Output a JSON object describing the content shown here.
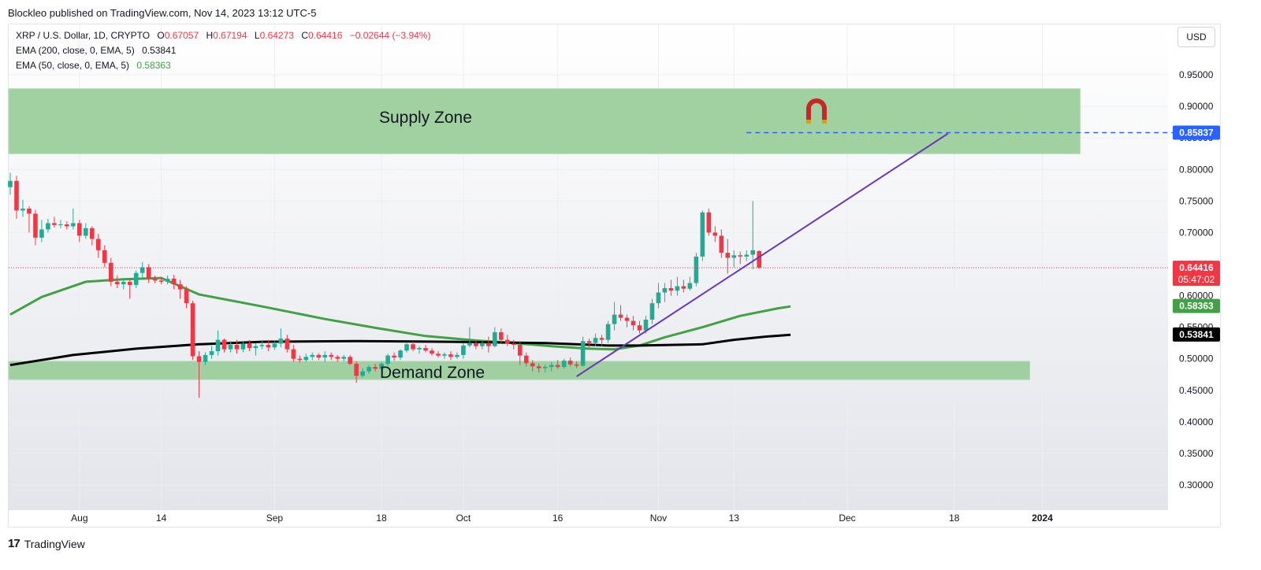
{
  "header": {
    "published": "Blockleo published on TradingView.com, Nov 14, 2023 13:12 UTC-5"
  },
  "legend": {
    "symbol": "XRP / U.S. Dollar, 1D, CRYPTO",
    "o_label": "O",
    "o": "0.67057",
    "h_label": "H",
    "h": "0.67194",
    "l_label": "L",
    "l": "0.64273",
    "c_label": "C",
    "c": "0.64416",
    "change": "−0.02644 (−3.94%)",
    "ema200": "EMA (200, close, 0, EMA, 5)",
    "ema200_val": "0.53841",
    "ema50": "EMA (50, close, 0, EMA, 5)",
    "ema50_val": "0.58363"
  },
  "currency_button": "USD",
  "footer": {
    "brand": "TradingView",
    "logo": "17"
  },
  "colors": {
    "up": "#22ab94",
    "down": "#f23645",
    "ema50": "#43a047",
    "ema200": "#000000",
    "trendline": "#673ab7",
    "zone": "#9ccf9c",
    "dash": "#2962ff"
  },
  "chart_data": {
    "type": "candlestick",
    "symbol": "XRP / U.S. Dollar",
    "ylim": [
      0.26,
      1.03
    ],
    "y_ticks": [
      "0.95000",
      "0.90000",
      "0.85000",
      "0.80000",
      "0.75000",
      "0.70000",
      "0.65000",
      "0.60000",
      "0.55000",
      "0.50000",
      "0.45000",
      "0.40000",
      "0.35000",
      "0.30000"
    ],
    "x_ticks": [
      "Aug",
      "14",
      "Sep",
      "18",
      "Oct",
      "16",
      "Nov",
      "13",
      "Dec",
      "18",
      "2024"
    ],
    "price_labels": [
      {
        "text": "0.85837",
        "value": 0.85837,
        "color": "#2962ff"
      },
      {
        "text": "0.64416",
        "sub": "05:47:02",
        "value": 0.64416,
        "color": "#f23645"
      },
      {
        "text": "0.58363",
        "value": 0.58363,
        "color": "#43a047"
      },
      {
        "text": "0.53841",
        "value": 0.53841,
        "color": "#000000"
      }
    ],
    "zones": [
      {
        "label": "Supply Zone",
        "low": 0.825,
        "high": 0.928,
        "start": "2023-07-21",
        "end": "2024-01-07"
      },
      {
        "label": "Demand Zone",
        "low": 0.467,
        "high": 0.496,
        "start": "2023-07-21",
        "end": "2023-12-30"
      }
    ],
    "target_line": {
      "value": 0.85837,
      "start": "2023-11-15"
    },
    "trendline": {
      "start": {
        "date": "2023-10-19",
        "value": 0.472
      },
      "end": {
        "date": "2023-12-17",
        "value": 0.857
      }
    },
    "last_price": 0.64416,
    "ema200": [
      [
        0,
        0.49
      ],
      [
        10,
        0.506
      ],
      [
        20,
        0.516
      ],
      [
        30,
        0.523
      ],
      [
        40,
        0.527
      ],
      [
        55,
        0.528
      ],
      [
        70,
        0.527
      ],
      [
        85,
        0.525
      ],
      [
        95,
        0.521
      ],
      [
        100,
        0.521
      ],
      [
        110,
        0.523
      ],
      [
        115,
        0.53
      ],
      [
        120,
        0.535
      ],
      [
        124,
        0.538
      ]
    ],
    "ema50": [
      [
        0,
        0.57
      ],
      [
        5,
        0.598
      ],
      [
        12,
        0.622
      ],
      [
        18,
        0.626
      ],
      [
        24,
        0.628
      ],
      [
        30,
        0.602
      ],
      [
        40,
        0.583
      ],
      [
        50,
        0.563
      ],
      [
        58,
        0.549
      ],
      [
        66,
        0.536
      ],
      [
        74,
        0.529
      ],
      [
        80,
        0.525
      ],
      [
        86,
        0.52
      ],
      [
        92,
        0.516
      ],
      [
        96,
        0.515
      ],
      [
        100,
        0.521
      ],
      [
        104,
        0.534
      ],
      [
        110,
        0.55
      ],
      [
        116,
        0.568
      ],
      [
        122,
        0.58
      ],
      [
        124,
        0.583
      ]
    ],
    "candles": [
      [
        0.772,
        0.795,
        0.76,
        0.782
      ],
      [
        0.782,
        0.79,
        0.722,
        0.735
      ],
      [
        0.735,
        0.752,
        0.725,
        0.738
      ],
      [
        0.738,
        0.742,
        0.7,
        0.73
      ],
      [
        0.73,
        0.736,
        0.68,
        0.692
      ],
      [
        0.692,
        0.72,
        0.685,
        0.705
      ],
      [
        0.705,
        0.722,
        0.7,
        0.715
      ],
      [
        0.715,
        0.725,
        0.708,
        0.712
      ],
      [
        0.712,
        0.72,
        0.707,
        0.713
      ],
      [
        0.713,
        0.718,
        0.705,
        0.71
      ],
      [
        0.71,
        0.738,
        0.705,
        0.715
      ],
      [
        0.715,
        0.72,
        0.685,
        0.695
      ],
      [
        0.695,
        0.715,
        0.69,
        0.707
      ],
      [
        0.707,
        0.71,
        0.68,
        0.69
      ],
      [
        0.69,
        0.698,
        0.66,
        0.672
      ],
      [
        0.672,
        0.68,
        0.645,
        0.652
      ],
      [
        0.652,
        0.66,
        0.615,
        0.622
      ],
      [
        0.622,
        0.632,
        0.612,
        0.618
      ],
      [
        0.618,
        0.628,
        0.61,
        0.622
      ],
      [
        0.622,
        0.626,
        0.595,
        0.617
      ],
      [
        0.617,
        0.64,
        0.612,
        0.636
      ],
      [
        0.636,
        0.653,
        0.628,
        0.645
      ],
      [
        0.645,
        0.65,
        0.62,
        0.627
      ],
      [
        0.627,
        0.632,
        0.62,
        0.624
      ],
      [
        0.624,
        0.63,
        0.618,
        0.622
      ],
      [
        0.622,
        0.632,
        0.618,
        0.627
      ],
      [
        0.627,
        0.633,
        0.61,
        0.618
      ],
      [
        0.618,
        0.625,
        0.595,
        0.61
      ],
      [
        0.61,
        0.615,
        0.58,
        0.588
      ],
      [
        0.588,
        0.592,
        0.498,
        0.504
      ],
      [
        0.504,
        0.512,
        0.438,
        0.495
      ],
      [
        0.495,
        0.51,
        0.49,
        0.506
      ],
      [
        0.506,
        0.52,
        0.5,
        0.512
      ],
      [
        0.512,
        0.545,
        0.505,
        0.53
      ],
      [
        0.53,
        0.532,
        0.51,
        0.515
      ],
      [
        0.515,
        0.528,
        0.51,
        0.522
      ],
      [
        0.522,
        0.53,
        0.508,
        0.515
      ],
      [
        0.515,
        0.527,
        0.51,
        0.524
      ],
      [
        0.524,
        0.53,
        0.512,
        0.517
      ],
      [
        0.517,
        0.525,
        0.505,
        0.52
      ],
      [
        0.52,
        0.528,
        0.515,
        0.522
      ],
      [
        0.522,
        0.53,
        0.512,
        0.518
      ],
      [
        0.518,
        0.528,
        0.514,
        0.524
      ],
      [
        0.524,
        0.548,
        0.518,
        0.532
      ],
      [
        0.532,
        0.538,
        0.51,
        0.515
      ],
      [
        0.515,
        0.522,
        0.495,
        0.5
      ],
      [
        0.5,
        0.505,
        0.494,
        0.498
      ],
      [
        0.498,
        0.508,
        0.495,
        0.503
      ],
      [
        0.503,
        0.51,
        0.498,
        0.506
      ],
      [
        0.506,
        0.509,
        0.498,
        0.502
      ],
      [
        0.502,
        0.512,
        0.495,
        0.506
      ],
      [
        0.506,
        0.51,
        0.498,
        0.503
      ],
      [
        0.503,
        0.506,
        0.495,
        0.5
      ],
      [
        0.5,
        0.506,
        0.496,
        0.503
      ],
      [
        0.503,
        0.506,
        0.49,
        0.492
      ],
      [
        0.492,
        0.496,
        0.462,
        0.473
      ],
      [
        0.473,
        0.485,
        0.47,
        0.48
      ],
      [
        0.48,
        0.49,
        0.476,
        0.487
      ],
      [
        0.487,
        0.492,
        0.48,
        0.484
      ],
      [
        0.484,
        0.495,
        0.48,
        0.492
      ],
      [
        0.492,
        0.508,
        0.488,
        0.505
      ],
      [
        0.505,
        0.51,
        0.497,
        0.502
      ],
      [
        0.502,
        0.515,
        0.498,
        0.513
      ],
      [
        0.513,
        0.525,
        0.51,
        0.523
      ],
      [
        0.523,
        0.527,
        0.512,
        0.515
      ],
      [
        0.515,
        0.52,
        0.508,
        0.517
      ],
      [
        0.517,
        0.522,
        0.51,
        0.513
      ],
      [
        0.513,
        0.517,
        0.505,
        0.508
      ],
      [
        0.508,
        0.512,
        0.502,
        0.505
      ],
      [
        0.505,
        0.51,
        0.5,
        0.507
      ],
      [
        0.507,
        0.512,
        0.498,
        0.503
      ],
      [
        0.503,
        0.51,
        0.5,
        0.506
      ],
      [
        0.506,
        0.525,
        0.5,
        0.521
      ],
      [
        0.521,
        0.55,
        0.518,
        0.525
      ],
      [
        0.525,
        0.53,
        0.515,
        0.52
      ],
      [
        0.52,
        0.528,
        0.515,
        0.525
      ],
      [
        0.525,
        0.535,
        0.51,
        0.52
      ],
      [
        0.52,
        0.55,
        0.518,
        0.542
      ],
      [
        0.542,
        0.548,
        0.525,
        0.53
      ],
      [
        0.53,
        0.538,
        0.52,
        0.524
      ],
      [
        0.524,
        0.53,
        0.515,
        0.522
      ],
      [
        0.522,
        0.528,
        0.49,
        0.505
      ],
      [
        0.505,
        0.51,
        0.488,
        0.493
      ],
      [
        0.493,
        0.498,
        0.48,
        0.488
      ],
      [
        0.488,
        0.492,
        0.478,
        0.485
      ],
      [
        0.485,
        0.491,
        0.478,
        0.487
      ],
      [
        0.487,
        0.495,
        0.48,
        0.49
      ],
      [
        0.49,
        0.498,
        0.484,
        0.487
      ],
      [
        0.487,
        0.5,
        0.484,
        0.497
      ],
      [
        0.497,
        0.502,
        0.488,
        0.491
      ],
      [
        0.491,
        0.496,
        0.485,
        0.489
      ],
      [
        0.489,
        0.535,
        0.487,
        0.528
      ],
      [
        0.528,
        0.532,
        0.518,
        0.525
      ],
      [
        0.525,
        0.54,
        0.52,
        0.533
      ],
      [
        0.533,
        0.538,
        0.52,
        0.53
      ],
      [
        0.53,
        0.56,
        0.525,
        0.555
      ],
      [
        0.555,
        0.59,
        0.545,
        0.57
      ],
      [
        0.57,
        0.585,
        0.56,
        0.565
      ],
      [
        0.565,
        0.57,
        0.55,
        0.56
      ],
      [
        0.56,
        0.568,
        0.545,
        0.553
      ],
      [
        0.553,
        0.56,
        0.54,
        0.545
      ],
      [
        0.545,
        0.568,
        0.54,
        0.562
      ],
      [
        0.562,
        0.595,
        0.555,
        0.588
      ],
      [
        0.588,
        0.62,
        0.58,
        0.605
      ],
      [
        0.605,
        0.62,
        0.59,
        0.612
      ],
      [
        0.612,
        0.625,
        0.6,
        0.608
      ],
      [
        0.608,
        0.63,
        0.6,
        0.615
      ],
      [
        0.615,
        0.625,
        0.605,
        0.611
      ],
      [
        0.611,
        0.63,
        0.608,
        0.62
      ],
      [
        0.62,
        0.668,
        0.615,
        0.662
      ],
      [
        0.662,
        0.735,
        0.655,
        0.732
      ],
      [
        0.732,
        0.738,
        0.695,
        0.7
      ],
      [
        0.7,
        0.71,
        0.685,
        0.695
      ],
      [
        0.695,
        0.705,
        0.66,
        0.668
      ],
      [
        0.668,
        0.69,
        0.635,
        0.66
      ],
      [
        0.66,
        0.672,
        0.645,
        0.664
      ],
      [
        0.664,
        0.67,
        0.65,
        0.662
      ],
      [
        0.662,
        0.672,
        0.655,
        0.665
      ],
      [
        0.665,
        0.75,
        0.642,
        0.672
      ],
      [
        0.6706,
        0.6719,
        0.6427,
        0.6442
      ]
    ]
  }
}
